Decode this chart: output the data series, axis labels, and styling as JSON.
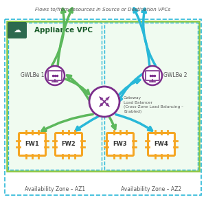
{
  "title": "Flows to/from resources in Source or Destination VPCs",
  "appliance_vpc_label": "Appliance VPC",
  "az1_label": "Availability Zone – AZ1",
  "az2_label": "Availability Zone – AZ2",
  "gwlbe1_label": "GWLBe 1",
  "gwlbe2_label": "GWLBe 2",
  "glb_label": "Gateway\nLoad Balancer\n(Cross-Zone Load Balancing –\nEnabled)",
  "fw_labels": [
    "FW1",
    "FW2",
    "FW3",
    "FW4"
  ],
  "green_color": "#5cb85c",
  "cyan_color": "#29b8d8",
  "purple_color": "#7b2d8b",
  "orange_color": "#f5a623",
  "dark_green_bg": "#2d6a4f",
  "light_green_border": "#8dc63f",
  "light_green_fill": "#f0fbf0",
  "text_color": "#555555",
  "appliance_label_color": "#1a5c2a",
  "title_fontsize": 5.5,
  "label_fontsize": 5.5,
  "az_fontsize": 5.5
}
